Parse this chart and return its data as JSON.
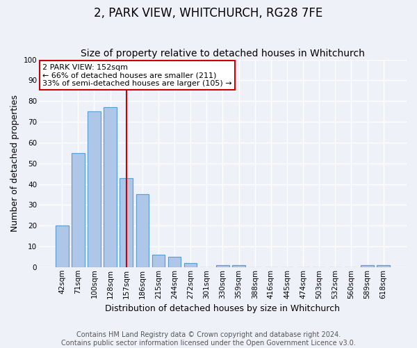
{
  "title": "2, PARK VIEW, WHITCHURCH, RG28 7FE",
  "subtitle": "Size of property relative to detached houses in Whitchurch",
  "xlabel": "Distribution of detached houses by size in Whitchurch",
  "ylabel": "Number of detached properties",
  "bin_labels": [
    "42sqm",
    "71sqm",
    "100sqm",
    "128sqm",
    "157sqm",
    "186sqm",
    "215sqm",
    "244sqm",
    "272sqm",
    "301sqm",
    "330sqm",
    "359sqm",
    "388sqm",
    "416sqm",
    "445sqm",
    "474sqm",
    "503sqm",
    "532sqm",
    "560sqm",
    "589sqm",
    "618sqm"
  ],
  "bar_values": [
    20,
    55,
    75,
    77,
    43,
    35,
    6,
    5,
    2,
    0,
    1,
    1,
    0,
    0,
    0,
    0,
    0,
    0,
    0,
    1,
    1
  ],
  "bar_color": "#aec6e8",
  "bar_edge_color": "#5a9fd4",
  "red_line_x": 4,
  "annotation_text": "2 PARK VIEW: 152sqm\n← 66% of detached houses are smaller (211)\n33% of semi-detached houses are larger (105) →",
  "annotation_box_color": "#ffffff",
  "annotation_box_edge_color": "#cc0000",
  "ylim": [
    0,
    100
  ],
  "footnote": "Contains HM Land Registry data © Crown copyright and database right 2024.\nContains public sector information licensed under the Open Government Licence v3.0.",
  "background_color": "#eef2f8",
  "plot_background": "#eef2f8",
  "grid_color": "#ffffff",
  "title_fontsize": 12,
  "subtitle_fontsize": 10,
  "axis_label_fontsize": 9,
  "tick_fontsize": 7.5,
  "footnote_fontsize": 7,
  "annotation_fontsize": 8
}
